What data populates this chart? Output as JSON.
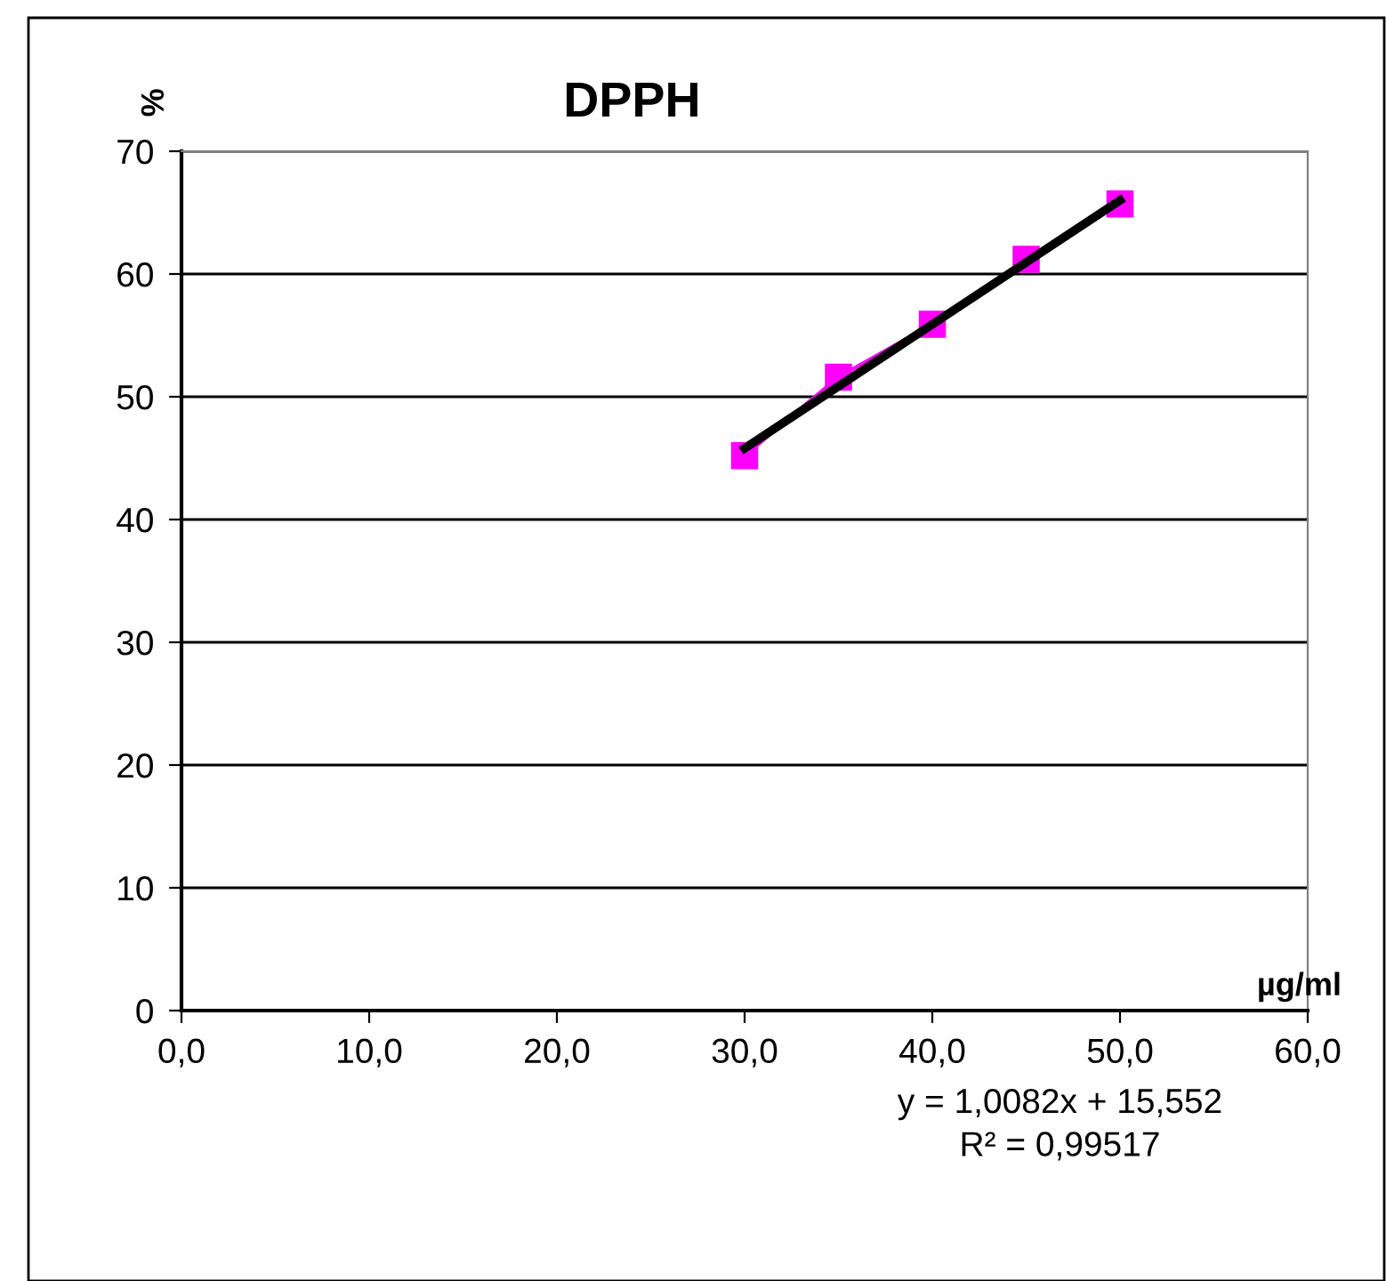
{
  "chart_data": {
    "type": "line",
    "title": "DPPH",
    "xlabel": "µg/ml",
    "ylabel": "%",
    "series": [
      {
        "color": "#ff00ff",
        "marker": "square",
        "x": [
          30,
          35,
          40,
          45,
          50
        ],
        "values": [
          45.2,
          51.6,
          55.9,
          61.2,
          65.7
        ]
      },
      {
        "color": "#000000",
        "marker": "none",
        "x": [
          30,
          50
        ],
        "values": [
          45.8,
          66.0
        ]
      }
    ],
    "xlim": [
      0,
      60
    ],
    "ylim": [
      0,
      70
    ],
    "xticks": [
      {
        "value": 0,
        "label": "0,0"
      },
      {
        "value": 10,
        "label": "10,0"
      },
      {
        "value": 20,
        "label": "20,0"
      },
      {
        "value": 30,
        "label": "30,0"
      },
      {
        "value": 40,
        "label": "40,0"
      },
      {
        "value": 50,
        "label": "50,0"
      },
      {
        "value": 60,
        "label": "60,0"
      }
    ],
    "yticks": [
      0,
      10,
      20,
      30,
      40,
      50,
      60,
      70
    ],
    "grid": "y",
    "legend": false,
    "annotations": [
      "y = 1,0082x + 15,552",
      "R² = 0,99517"
    ]
  }
}
